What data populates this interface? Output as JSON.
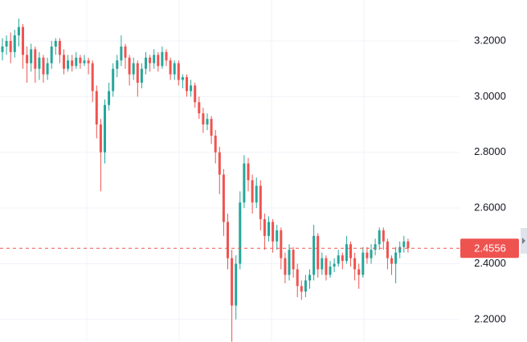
{
  "chart_data": {
    "type": "candlestick",
    "ylim": [
      2.119,
      3.347
    ],
    "yticks": [
      {
        "value": 2.2,
        "label": "2.2000"
      },
      {
        "value": 2.4,
        "label": "2.4000"
      },
      {
        "value": 2.6,
        "label": "2.6000"
      },
      {
        "value": 2.8,
        "label": "2.8000"
      },
      {
        "value": 3.0,
        "label": "3.0000"
      },
      {
        "value": 3.2,
        "label": "3.2000"
      }
    ],
    "grid": true,
    "up_color": "#26a69a",
    "down_color": "#ef5350",
    "last_price": 2.4556,
    "ohlc": [
      [
        3.16,
        3.21,
        3.13,
        3.18
      ],
      [
        3.18,
        3.22,
        3.15,
        3.2
      ],
      [
        3.2,
        3.23,
        3.12,
        3.16
      ],
      [
        3.16,
        3.24,
        3.14,
        3.22
      ],
      [
        3.22,
        3.28,
        3.18,
        3.25
      ],
      [
        3.25,
        3.26,
        3.1,
        3.15
      ],
      [
        3.15,
        3.18,
        3.05,
        3.12
      ],
      [
        3.12,
        3.19,
        3.09,
        3.17
      ],
      [
        3.17,
        3.18,
        3.05,
        3.1
      ],
      [
        3.1,
        3.16,
        3.06,
        3.14
      ],
      [
        3.14,
        3.15,
        3.05,
        3.08
      ],
      [
        3.08,
        3.14,
        3.06,
        3.12
      ],
      [
        3.12,
        3.2,
        3.1,
        3.18
      ],
      [
        3.18,
        3.21,
        3.15,
        3.2
      ],
      [
        3.2,
        3.21,
        3.12,
        3.15
      ],
      [
        3.15,
        3.17,
        3.08,
        3.1
      ],
      [
        3.1,
        3.15,
        3.09,
        3.13
      ],
      [
        3.13,
        3.15,
        3.09,
        3.11
      ],
      [
        3.11,
        3.16,
        3.1,
        3.14
      ],
      [
        3.14,
        3.15,
        3.1,
        3.12
      ],
      [
        3.12,
        3.15,
        3.11,
        3.13
      ],
      [
        3.13,
        3.14,
        3.08,
        3.12
      ],
      [
        3.12,
        3.13,
        2.98,
        3.02
      ],
      [
        3.02,
        3.04,
        2.85,
        2.9
      ],
      [
        2.9,
        2.92,
        2.66,
        2.8
      ],
      [
        2.8,
        2.99,
        2.76,
        2.97
      ],
      [
        2.97,
        3.05,
        2.95,
        3.02
      ],
      [
        3.02,
        3.12,
        3.0,
        3.1
      ],
      [
        3.1,
        3.15,
        3.07,
        3.13
      ],
      [
        3.13,
        3.22,
        3.11,
        3.18
      ],
      [
        3.18,
        3.19,
        3.1,
        3.14
      ],
      [
        3.14,
        3.15,
        3.04,
        3.08
      ],
      [
        3.08,
        3.14,
        3.06,
        3.12
      ],
      [
        3.12,
        3.13,
        3.0,
        3.05
      ],
      [
        3.05,
        3.12,
        3.03,
        3.1
      ],
      [
        3.1,
        3.16,
        3.08,
        3.14
      ],
      [
        3.14,
        3.15,
        3.09,
        3.12
      ],
      [
        3.12,
        3.17,
        3.1,
        3.15
      ],
      [
        3.15,
        3.16,
        3.09,
        3.11
      ],
      [
        3.11,
        3.18,
        3.1,
        3.16
      ],
      [
        3.16,
        3.17,
        3.11,
        3.13
      ],
      [
        3.13,
        3.14,
        3.06,
        3.08
      ],
      [
        3.08,
        3.13,
        3.06,
        3.12
      ],
      [
        3.12,
        3.13,
        3.04,
        3.06
      ],
      [
        3.06,
        3.08,
        3.03,
        3.07
      ],
      [
        3.07,
        3.08,
        3.0,
        3.02
      ],
      [
        3.02,
        3.06,
        3.0,
        3.04
      ],
      [
        3.04,
        3.05,
        2.96,
        2.98
      ],
      [
        2.98,
        3.0,
        2.92,
        2.94
      ],
      [
        2.94,
        2.96,
        2.87,
        2.9
      ],
      [
        2.9,
        2.94,
        2.88,
        2.92
      ],
      [
        2.92,
        2.93,
        2.83,
        2.86
      ],
      [
        2.86,
        2.88,
        2.76,
        2.8
      ],
      [
        2.8,
        2.82,
        2.65,
        2.72
      ],
      [
        2.72,
        2.74,
        2.5,
        2.55
      ],
      [
        2.55,
        2.58,
        2.38,
        2.42
      ],
      [
        2.42,
        2.45,
        2.12,
        2.25
      ],
      [
        2.25,
        2.43,
        2.2,
        2.4
      ],
      [
        2.4,
        2.66,
        2.38,
        2.62
      ],
      [
        2.62,
        2.79,
        2.6,
        2.76
      ],
      [
        2.76,
        2.78,
        2.66,
        2.7
      ],
      [
        2.7,
        2.72,
        2.58,
        2.62
      ],
      [
        2.62,
        2.71,
        2.6,
        2.68
      ],
      [
        2.68,
        2.7,
        2.52,
        2.56
      ],
      [
        2.56,
        2.58,
        2.45,
        2.5
      ],
      [
        2.5,
        2.57,
        2.48,
        2.55
      ],
      [
        2.55,
        2.56,
        2.44,
        2.48
      ],
      [
        2.48,
        2.54,
        2.45,
        2.52
      ],
      [
        2.52,
        2.53,
        2.38,
        2.42
      ],
      [
        2.42,
        2.44,
        2.33,
        2.36
      ],
      [
        2.36,
        2.47,
        2.34,
        2.45
      ],
      [
        2.45,
        2.46,
        2.35,
        2.38
      ],
      [
        2.38,
        2.4,
        2.28,
        2.32
      ],
      [
        2.32,
        2.34,
        2.27,
        2.3
      ],
      [
        2.3,
        2.36,
        2.28,
        2.34
      ],
      [
        2.34,
        2.38,
        2.31,
        2.36
      ],
      [
        2.36,
        2.54,
        2.34,
        2.5
      ],
      [
        2.5,
        2.51,
        2.35,
        2.38
      ],
      [
        2.38,
        2.44,
        2.36,
        2.42
      ],
      [
        2.42,
        2.43,
        2.34,
        2.36
      ],
      [
        2.36,
        2.41,
        2.35,
        2.39
      ],
      [
        2.39,
        2.42,
        2.37,
        2.4
      ],
      [
        2.4,
        2.45,
        2.39,
        2.43
      ],
      [
        2.43,
        2.44,
        2.38,
        2.41
      ],
      [
        2.41,
        2.5,
        2.4,
        2.47
      ],
      [
        2.47,
        2.48,
        2.39,
        2.42
      ],
      [
        2.42,
        2.44,
        2.34,
        2.38
      ],
      [
        2.38,
        2.4,
        2.31,
        2.36
      ],
      [
        2.36,
        2.46,
        2.35,
        2.44
      ],
      [
        2.44,
        2.46,
        2.4,
        2.42
      ],
      [
        2.42,
        2.47,
        2.4,
        2.45
      ],
      [
        2.45,
        2.49,
        2.43,
        2.47
      ],
      [
        2.47,
        2.53,
        2.45,
        2.52
      ],
      [
        2.52,
        2.53,
        2.45,
        2.48
      ],
      [
        2.48,
        2.49,
        2.38,
        2.42
      ],
      [
        2.42,
        2.43,
        2.36,
        2.4
      ],
      [
        2.4,
        2.46,
        2.33,
        2.44
      ],
      [
        2.44,
        2.48,
        2.42,
        2.46
      ],
      [
        2.46,
        2.5,
        2.44,
        2.48
      ],
      [
        2.48,
        2.49,
        2.44,
        2.4556
      ]
    ]
  }
}
